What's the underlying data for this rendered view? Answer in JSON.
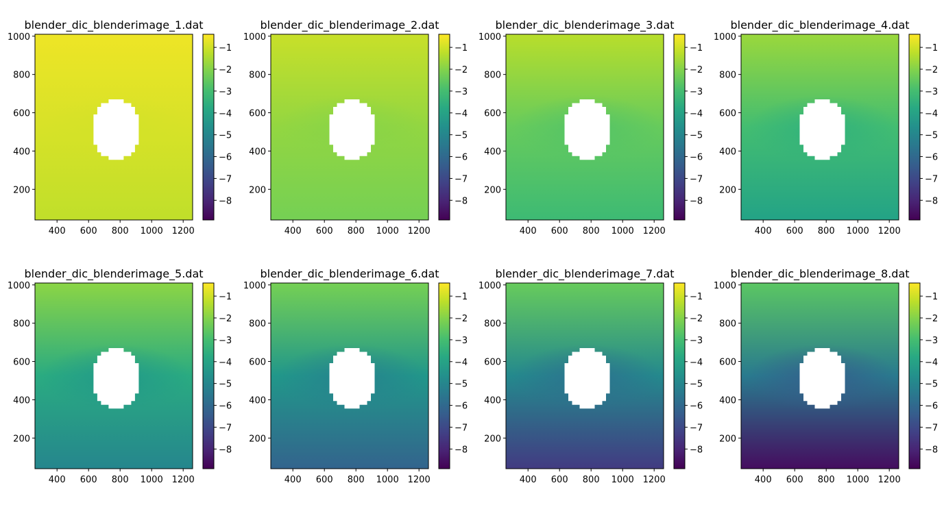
{
  "chart_data": [
    {
      "type": "heatmap",
      "title": "blender_dic_blenderimage_1.dat",
      "xlim": [
        260,
        1260
      ],
      "ylim": [
        40,
        1010
      ],
      "xticks": [
        400,
        600,
        800,
        1000,
        1200
      ],
      "yticks": [
        200,
        400,
        600,
        800,
        1000
      ],
      "colorbar": {
        "range": [
          -8.9,
          -0.4
        ],
        "ticks": [
          -1,
          -2,
          -3,
          -4,
          -5,
          -6,
          -7,
          -8
        ]
      },
      "field": {
        "top": -0.6,
        "mid": -0.9,
        "bottom": -1.2,
        "center_drop": 0.05
      },
      "hole": {
        "center": [
          775,
          515
        ],
        "radius_x": 155,
        "radius_y": 155
      }
    },
    {
      "type": "heatmap",
      "title": "blender_dic_blenderimage_2.dat",
      "xlim": [
        260,
        1260
      ],
      "ylim": [
        40,
        1010
      ],
      "xticks": [
        400,
        600,
        800,
        1000,
        1200
      ],
      "yticks": [
        200,
        400,
        600,
        800,
        1000
      ],
      "colorbar": {
        "range": [
          -8.9,
          -0.4
        ],
        "ticks": [
          -1,
          -2,
          -3,
          -4,
          -5,
          -6,
          -7,
          -8
        ]
      },
      "field": {
        "top": -1.1,
        "mid": -1.8,
        "bottom": -2.2,
        "center_drop": 0.15
      },
      "hole": {
        "center": [
          775,
          515
        ],
        "radius_x": 155,
        "radius_y": 155
      }
    },
    {
      "type": "heatmap",
      "title": "blender_dic_blenderimage_3.dat",
      "xlim": [
        260,
        1260
      ],
      "ylim": [
        40,
        1010
      ],
      "xticks": [
        400,
        600,
        800,
        1000,
        1200
      ],
      "yticks": [
        200,
        400,
        600,
        800,
        1000
      ],
      "colorbar": {
        "range": [
          -8.9,
          -0.4
        ],
        "ticks": [
          -1,
          -2,
          -3,
          -4,
          -5,
          -6,
          -7,
          -8
        ]
      },
      "field": {
        "top": -1.3,
        "mid": -2.4,
        "bottom": -3.1,
        "center_drop": 0.35
      },
      "hole": {
        "center": [
          775,
          515
        ],
        "radius_x": 155,
        "radius_y": 155
      }
    },
    {
      "type": "heatmap",
      "title": "blender_dic_blenderimage_4.dat",
      "xlim": [
        260,
        1260
      ],
      "ylim": [
        40,
        1010
      ],
      "xticks": [
        400,
        600,
        800,
        1000,
        1200
      ],
      "yticks": [
        200,
        400,
        600,
        800,
        1000
      ],
      "colorbar": {
        "range": [
          -8.9,
          -0.4
        ],
        "ticks": [
          -1,
          -2,
          -3,
          -4,
          -5,
          -6,
          -7,
          -8
        ]
      },
      "field": {
        "top": -1.7,
        "mid": -3.0,
        "bottom": -4.0,
        "center_drop": 0.5
      },
      "hole": {
        "center": [
          775,
          515
        ],
        "radius_x": 155,
        "radius_y": 155
      }
    },
    {
      "type": "heatmap",
      "title": "blender_dic_blenderimage_5.dat",
      "xlim": [
        260,
        1260
      ],
      "ylim": [
        40,
        1010
      ],
      "xticks": [
        400,
        600,
        800,
        1000,
        1200
      ],
      "yticks": [
        200,
        400,
        600,
        800,
        1000
      ],
      "colorbar": {
        "range": [
          -8.9,
          -0.4
        ],
        "ticks": [
          -1,
          -2,
          -3,
          -4,
          -5,
          -6,
          -7,
          -8
        ]
      },
      "field": {
        "top": -1.9,
        "mid": -3.7,
        "bottom": -5.0,
        "center_drop": 0.7
      },
      "hole": {
        "center": [
          775,
          515
        ],
        "radius_x": 155,
        "radius_y": 155
      }
    },
    {
      "type": "heatmap",
      "title": "blender_dic_blenderimage_6.dat",
      "xlim": [
        260,
        1260
      ],
      "ylim": [
        40,
        1010
      ],
      "xticks": [
        400,
        600,
        800,
        1000,
        1200
      ],
      "yticks": [
        200,
        400,
        600,
        800,
        1000
      ],
      "colorbar": {
        "range": [
          -8.9,
          -0.4
        ],
        "ticks": [
          -1,
          -2,
          -3,
          -4,
          -5,
          -6,
          -7,
          -8
        ]
      },
      "field": {
        "top": -2.2,
        "mid": -4.4,
        "bottom": -6.2,
        "center_drop": 0.8
      },
      "hole": {
        "center": [
          775,
          515
        ],
        "radius_x": 155,
        "radius_y": 155
      }
    },
    {
      "type": "heatmap",
      "title": "blender_dic_blenderimage_7.dat",
      "xlim": [
        260,
        1260
      ],
      "ylim": [
        40,
        1010
      ],
      "xticks": [
        400,
        600,
        800,
        1000,
        1200
      ],
      "yticks": [
        200,
        400,
        600,
        800,
        1000
      ],
      "colorbar": {
        "range": [
          -8.9,
          -0.4
        ],
        "ticks": [
          -1,
          -2,
          -3,
          -4,
          -5,
          -6,
          -7,
          -8
        ]
      },
      "field": {
        "top": -2.4,
        "mid": -4.9,
        "bottom": -7.4,
        "center_drop": 0.9
      },
      "hole": {
        "center": [
          775,
          515
        ],
        "radius_x": 155,
        "radius_y": 155
      }
    },
    {
      "type": "heatmap",
      "title": "blender_dic_blenderimage_8.dat",
      "xlim": [
        260,
        1260
      ],
      "ylim": [
        40,
        1010
      ],
      "xticks": [
        400,
        600,
        800,
        1000,
        1200
      ],
      "yticks": [
        200,
        400,
        600,
        800,
        1000
      ],
      "colorbar": {
        "range": [
          -8.9,
          -0.4
        ],
        "ticks": [
          -1,
          -2,
          -3,
          -4,
          -5,
          -6,
          -7,
          -8
        ]
      },
      "field": {
        "top": -2.6,
        "mid": -5.4,
        "bottom": -8.6,
        "center_drop": 1.0
      },
      "hole": {
        "center": [
          775,
          515
        ],
        "radius_x": 155,
        "radius_y": 155
      }
    }
  ]
}
